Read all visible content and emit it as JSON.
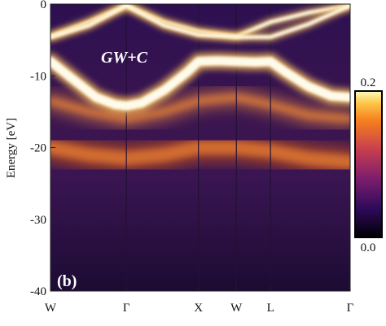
{
  "chart_data": {
    "type": "heatmap",
    "title": "",
    "panel_label": "(b)",
    "method_label": "GW+C",
    "ylabel": "Energy [eV]",
    "xlabel": "",
    "ylim": [
      -40,
      0
    ],
    "yticks": [
      0,
      -10,
      -20,
      -30,
      -40
    ],
    "k_path": [
      {
        "label": "W",
        "x": 0.0
      },
      {
        "label": "Γ",
        "x": 1.0
      },
      {
        "label": "X",
        "x": 1.95
      },
      {
        "label": "W",
        "x": 2.45
      },
      {
        "label": "L",
        "x": 2.9
      },
      {
        "label": "Γ",
        "x": 3.95
      }
    ],
    "colorbar": {
      "min": 0.0,
      "max": 0.2,
      "labels": [
        "0.2",
        "0.0"
      ]
    },
    "quasiparticle_bands": [
      {
        "name": "band-lower",
        "x": [
          0.0,
          0.3,
          0.6,
          0.85,
          1.0,
          1.2,
          1.5,
          1.8,
          1.95,
          2.2,
          2.45,
          2.7,
          2.9,
          3.1,
          3.4,
          3.7,
          3.95
        ],
        "energy": [
          -8.0,
          -10.5,
          -13.0,
          -14.0,
          -14.2,
          -13.8,
          -12.0,
          -9.5,
          -8.0,
          -7.9,
          -8.0,
          -8.1,
          -8.0,
          -9.5,
          -11.5,
          -12.8,
          -13.0
        ]
      },
      {
        "name": "band-upper-a",
        "x": [
          0.0,
          0.5,
          1.0,
          1.5,
          1.95,
          2.45,
          2.9,
          3.4,
          3.95
        ],
        "energy": [
          -4.5,
          -2.5,
          -0.2,
          -2.5,
          -3.8,
          -4.5,
          -2.5,
          -1.2,
          -0.2
        ]
      },
      {
        "name": "band-upper-b",
        "x": [
          0.0,
          0.5,
          1.0,
          1.5,
          1.95,
          2.45,
          2.9,
          3.4,
          3.95
        ],
        "energy": [
          -4.6,
          -3.0,
          -0.2,
          -3.0,
          -4.3,
          -4.6,
          -4.6,
          -2.8,
          -0.2
        ]
      }
    ],
    "satellite_bands": [
      {
        "name": "satellite-broad",
        "x": [
          0.0,
          0.5,
          1.0,
          1.5,
          1.95,
          2.45,
          2.9,
          3.4,
          3.95
        ],
        "energy": [
          -20.0,
          -21.0,
          -21.5,
          -21.0,
          -20.0,
          -20.0,
          -20.5,
          -21.5,
          -22.0
        ]
      },
      {
        "name": "satellite-upper",
        "x": [
          0.0,
          0.5,
          1.0,
          1.5,
          1.95,
          2.45,
          2.9,
          3.4,
          3.95
        ],
        "energy": [
          -13.5,
          -15.0,
          -16.0,
          -15.0,
          -13.5,
          -13.0,
          -14.0,
          -15.5,
          -16.0
        ]
      }
    ],
    "colors": {
      "qp_core": "#fffbea",
      "qp_glow": "#ffc65a",
      "satellite": "#ff9236",
      "satellite_deep": "#c0501e",
      "background_top": "#2c0f4d",
      "background_low": "#1a0a30",
      "divider": "#241036"
    }
  }
}
